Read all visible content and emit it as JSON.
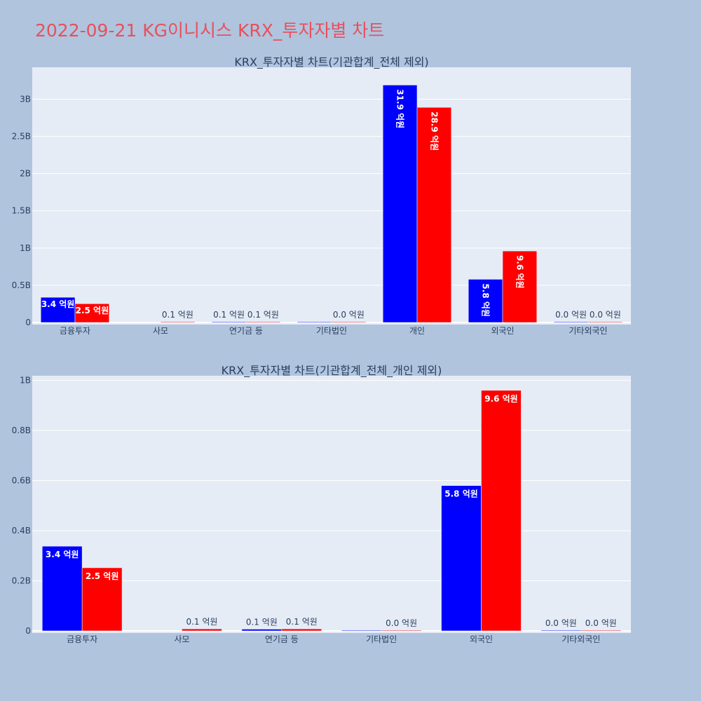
{
  "title": "2022-09-21 KG이니시스 KRX_투자자별 차트",
  "colors": {
    "page_bg": "#b0c4de",
    "plot_bg": "#e5ecf6",
    "grid": "#ffffff",
    "buy": "#0000ff",
    "sell": "#ff0000"
  },
  "chart_data": [
    {
      "type": "bar",
      "title": "KRX_투자자별 차트(기관합계_전체 제외)",
      "categories": [
        "금융투자",
        "사모",
        "연기금 등",
        "기타법인",
        "개인",
        "외국인",
        "기타외국인"
      ],
      "ylim": [
        0,
        3.4
      ],
      "yticks": [
        0,
        0.5,
        1,
        1.5,
        2,
        2.5,
        3
      ],
      "ytick_labels": [
        "0",
        "0.5B",
        "1B",
        "1.5B",
        "2B",
        "2.5B",
        "3B"
      ],
      "value_unit": "B",
      "label_orientation": "vertical",
      "grid": true,
      "series": [
        {
          "color": "#0000ff",
          "values": [
            0.338,
            null,
            0.007,
            0.0,
            3.19,
            0.58,
            0.0
          ],
          "labels": [
            "3.4 억원",
            "",
            "0.1 억원",
            "",
            "31.9 억원",
            "5.8 억원",
            "0.0 억원"
          ]
        },
        {
          "color": "#ff0000",
          "values": [
            0.252,
            0.008,
            0.008,
            0.0,
            2.89,
            0.96,
            0.0
          ],
          "labels": [
            "2.5 억원",
            "0.1 억원",
            "0.1 억원",
            "0.0 억원",
            "28.9 억원",
            "9.6 억원",
            "0.0 억원"
          ]
        }
      ]
    },
    {
      "type": "bar",
      "title": "KRX_투자자별 차트(기관합계_전체_개인 제외)",
      "categories": [
        "금융투자",
        "사모",
        "연기금 등",
        "기타법인",
        "외국인",
        "기타외국인"
      ],
      "ylim": [
        0,
        1.01
      ],
      "yticks": [
        0,
        0.2,
        0.4,
        0.6,
        0.8,
        1
      ],
      "ytick_labels": [
        "0",
        "0.2B",
        "0.4B",
        "0.6B",
        "0.8B",
        "1B"
      ],
      "value_unit": "B",
      "label_orientation": "horizontal",
      "grid": true,
      "series": [
        {
          "color": "#0000ff",
          "values": [
            0.338,
            null,
            0.007,
            0.0,
            0.58,
            0.0
          ],
          "labels": [
            "3.4 억원",
            "",
            "0.1 억원",
            "",
            "5.8 억원",
            "0.0 억원"
          ]
        },
        {
          "color": "#ff0000",
          "values": [
            0.252,
            0.008,
            0.008,
            0.0,
            0.96,
            0.0
          ],
          "labels": [
            "2.5 억원",
            "0.1 억원",
            "0.1 억원",
            "0.0 억원",
            "9.6 억원",
            "0.0 억원"
          ]
        }
      ]
    }
  ]
}
